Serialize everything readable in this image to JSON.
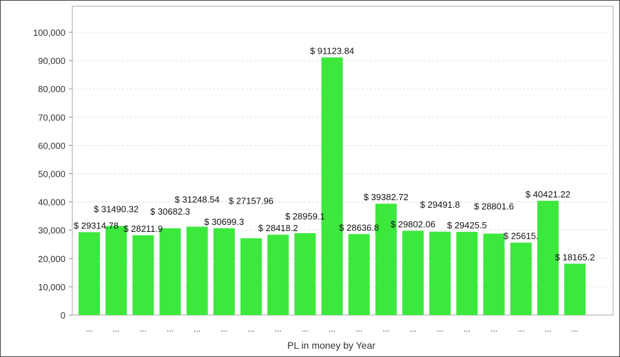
{
  "chart_data": {
    "type": "bar",
    "title": "",
    "xlabel": "PL in money by Year",
    "ylabel": "",
    "ylim": [
      0,
      100000
    ],
    "yticks": [
      "0",
      "10,000",
      "20,000",
      "30,000",
      "40,000",
      "50,000",
      "60,000",
      "70,000",
      "80,000",
      "90,000",
      "100,000"
    ],
    "grid": true,
    "bar_color": "#3de83d",
    "categories": [
      "...",
      "...",
      "...",
      "...",
      "...",
      "...",
      "...",
      "...",
      "...",
      "...",
      "...",
      "...",
      "...",
      "...",
      "...",
      "...",
      "...",
      "...",
      "..."
    ],
    "values": [
      29314.78,
      31490.32,
      28211.9,
      30682.3,
      31248.54,
      30699.3,
      27157.96,
      28418.2,
      28959.1,
      91123.84,
      28636.8,
      39382.72,
      29802.06,
      29491.8,
      29425.5,
      28801.6,
      25615,
      40421.22,
      18165.2
    ],
    "labels": [
      "$ 29314.78",
      "$ 31490.32",
      "$ 28211.9",
      "$ 30682.3",
      "$ 31248.54",
      "$ 30699.3",
      "$ 27157.96",
      "$ 28418.2",
      "$ 28959.1",
      "$ 91123.84",
      "$ 28636.8",
      "$ 39382.72",
      "$ 29802.06",
      "$ 29491.8",
      "$ 29425.5",
      "$ 28801.6",
      "$ 25615.",
      "$ 40421.22",
      "$ 18165.2"
    ]
  }
}
